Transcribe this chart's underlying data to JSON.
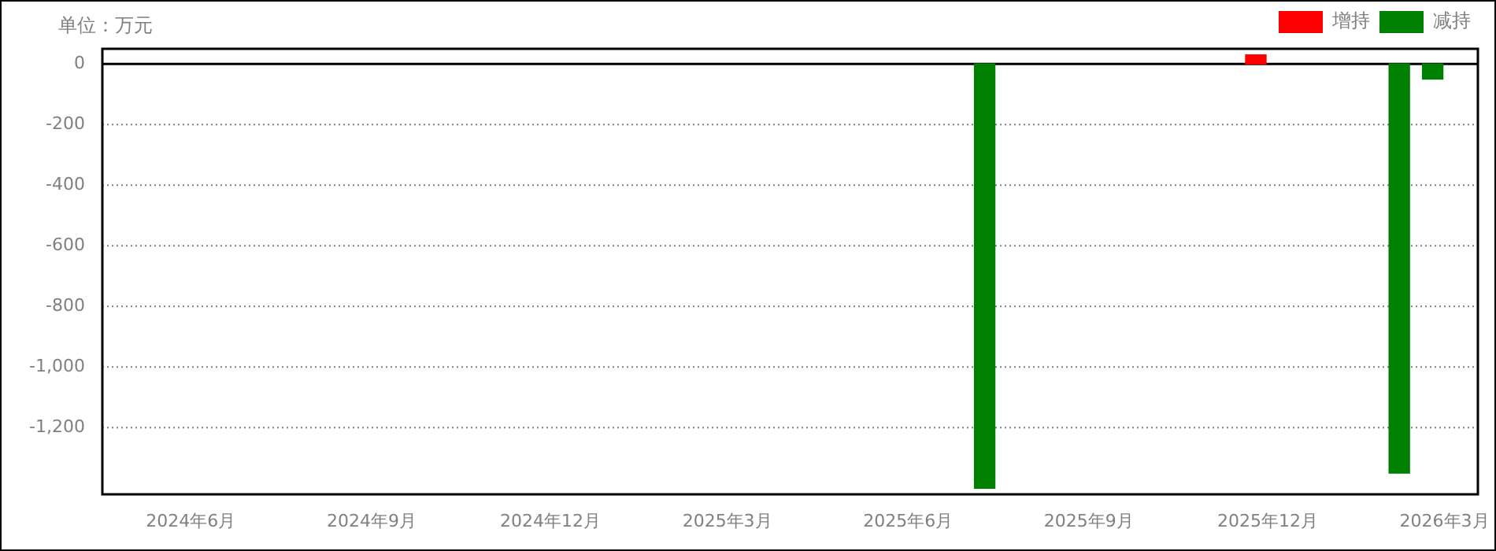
{
  "chart_data": {
    "type": "bar",
    "ylabel": "单位：万元",
    "xlim": [
      "2024-04-17",
      "2026-03-18"
    ],
    "xticks": [
      {
        "value": "2024-06-01",
        "label": "2024年6月"
      },
      {
        "value": "2024-09-01",
        "label": "2024年9月"
      },
      {
        "value": "2024-12-01",
        "label": "2024年12月"
      },
      {
        "value": "2025-03-01",
        "label": "2025年3月"
      },
      {
        "value": "2025-06-01",
        "label": "2025年6月"
      },
      {
        "value": "2025-09-01",
        "label": "2025年9月"
      },
      {
        "value": "2025-12-01",
        "label": "2025年12月"
      },
      {
        "value": "2026-03-01",
        "label": "2026年3月"
      }
    ],
    "ylim": [
      -1420,
      50
    ],
    "yticks": [
      0,
      -200,
      -400,
      -600,
      -800,
      {
        "value": -1000,
        "label": "-1,000"
      },
      {
        "value": -1200,
        "label": "-1,200"
      }
    ],
    "series": [
      {
        "name": "增持",
        "color": "#ff0000",
        "x": [
          "2025-11-25"
        ],
        "values": [
          30
        ]
      },
      {
        "name": "减持",
        "color": "#008000",
        "x": [
          "2025-07-10",
          "2026-02-06",
          "2026-02-23"
        ],
        "values": [
          -1400,
          -1350,
          -50
        ]
      }
    ],
    "grid": "y",
    "legend": "top right"
  }
}
